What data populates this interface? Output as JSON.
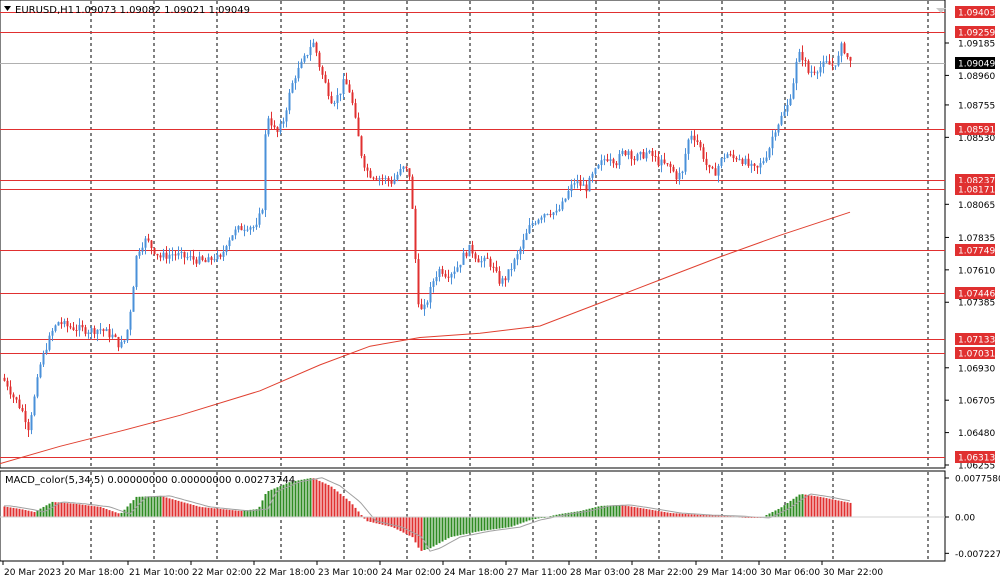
{
  "main_header": {
    "symbol": "EURUSD,H1",
    "ohlc": "1.09073 1.09082 1.09021 1.09049"
  },
  "price_axis": {
    "ticks": [
      "1.09185",
      "1.08960",
      "1.08755",
      "1.08530",
      "1.08065",
      "1.07835",
      "1.07610",
      "1.07385",
      "1.06930",
      "1.06705",
      "1.06480",
      "1.06255"
    ],
    "tick_values": [
      1.09185,
      1.0896,
      1.08755,
      1.0853,
      1.08065,
      1.07835,
      1.0761,
      1.07385,
      1.0693,
      1.06705,
      1.0648,
      1.06255
    ],
    "levels": [
      "1.09403",
      "1.09259",
      "1.08591",
      "1.08237",
      "1.08171",
      "1.07749",
      "1.07446",
      "1.07133",
      "1.07031",
      "1.06313"
    ],
    "level_values": [
      1.09403,
      1.09259,
      1.08591,
      1.08237,
      1.08171,
      1.07749,
      1.07446,
      1.07133,
      1.07031,
      1.06313
    ],
    "current": "1.09049",
    "current_value": 1.09049
  },
  "time_axis": {
    "labels": [
      "20 Mar 2023",
      "20 Mar 18:00",
      "21 Mar 10:00",
      "22 Mar 02:00",
      "22 Mar 18:00",
      "23 Mar 10:00",
      "24 Mar 02:00",
      "24 Mar 18:00",
      "27 Mar 11:00",
      "28 Mar 03:00",
      "28 Mar 22:00",
      "29 Mar 14:00",
      "30 Mar 06:00",
      "30 Mar 22:00"
    ]
  },
  "macd": {
    "header": "MACD_color(5,34,5) 0.00000000 0.00000000 0.00273744",
    "ticks": [
      "0.0077580",
      "0.00",
      "-0.0072270"
    ]
  },
  "colors": {
    "bull": "#4a90d9",
    "bear": "#e03030",
    "level_line": "#e03030",
    "ma_line": "#e04030",
    "macd_up": "#2e8b22",
    "macd_down": "#e03030",
    "signal_line": "#a0a0a0"
  },
  "chart_data": {
    "type": "candlestick",
    "symbol": "EURUSD",
    "timeframe": "H1",
    "price_range": [
      1.0624,
      1.0948
    ],
    "close_path": [
      [
        0,
        1.0686
      ],
      [
        6,
        1.0683
      ],
      [
        12,
        1.0674
      ],
      [
        18,
        1.0668
      ],
      [
        24,
        1.066
      ],
      [
        28,
        1.0652
      ],
      [
        34,
        1.0672
      ],
      [
        40,
        1.0695
      ],
      [
        46,
        1.0708
      ],
      [
        52,
        1.0718
      ],
      [
        58,
        1.0725
      ],
      [
        66,
        1.0722
      ],
      [
        78,
        1.072
      ],
      [
        90,
        1.0719
      ],
      [
        100,
        1.072
      ],
      [
        112,
        1.0715
      ],
      [
        120,
        1.0708
      ],
      [
        124,
        1.0712
      ],
      [
        128,
        1.0722
      ],
      [
        132,
        1.0745
      ],
      [
        136,
        1.077
      ],
      [
        140,
        1.0778
      ],
      [
        146,
        1.0782
      ],
      [
        152,
        1.0776
      ],
      [
        160,
        1.077
      ],
      [
        172,
        1.0772
      ],
      [
        184,
        1.077
      ],
      [
        196,
        1.0768
      ],
      [
        206,
        1.0766
      ],
      [
        214,
        1.077
      ],
      [
        220,
        1.0768
      ],
      [
        226,
        1.078
      ],
      [
        232,
        1.0786
      ],
      [
        240,
        1.079
      ],
      [
        248,
        1.0792
      ],
      [
        256,
        1.079
      ],
      [
        262,
        1.0805
      ],
      [
        266,
        1.087
      ],
      [
        270,
        1.0865
      ],
      [
        276,
        1.0855
      ],
      [
        282,
        1.0862
      ],
      [
        288,
        1.088
      ],
      [
        294,
        1.0895
      ],
      [
        300,
        1.0902
      ],
      [
        306,
        1.091
      ],
      [
        312,
        1.092
      ],
      [
        316,
        1.0912
      ],
      [
        320,
        1.09
      ],
      [
        326,
        1.0888
      ],
      [
        332,
        1.0878
      ],
      [
        338,
        1.0882
      ],
      [
        344,
        1.0892
      ],
      [
        350,
        1.0884
      ],
      [
        356,
        1.086
      ],
      [
        362,
        1.0838
      ],
      [
        368,
        1.0828
      ],
      [
        376,
        1.0826
      ],
      [
        384,
        1.0824
      ],
      [
        392,
        1.0822
      ],
      [
        398,
        1.0828
      ],
      [
        404,
        1.0832
      ],
      [
        410,
        1.0826
      ],
      [
        414,
        1.0778
      ],
      [
        418,
        1.074
      ],
      [
        422,
        1.073
      ],
      [
        428,
        1.0742
      ],
      [
        434,
        1.0756
      ],
      [
        440,
        1.0762
      ],
      [
        446,
        1.0758
      ],
      [
        452,
        1.076
      ],
      [
        458,
        1.0764
      ],
      [
        464,
        1.0772
      ],
      [
        470,
        1.0776
      ],
      [
        476,
        1.077
      ],
      [
        482,
        1.0766
      ],
      [
        488,
        1.0768
      ],
      [
        494,
        1.076
      ],
      [
        500,
        1.0752
      ],
      [
        506,
        1.0756
      ],
      [
        512,
        1.0764
      ],
      [
        518,
        1.0772
      ],
      [
        524,
        1.0782
      ],
      [
        530,
        1.0792
      ],
      [
        536,
        1.0796
      ],
      [
        542,
        1.08
      ],
      [
        548,
        1.0802
      ],
      [
        556,
        1.08
      ],
      [
        562,
        1.0806
      ],
      [
        568,
        1.0815
      ],
      [
        574,
        1.0822
      ],
      [
        580,
        1.082
      ],
      [
        586,
        1.0818
      ],
      [
        592,
        1.0826
      ],
      [
        598,
        1.0832
      ],
      [
        604,
        1.0838
      ],
      [
        610,
        1.084
      ],
      [
        616,
        1.0836
      ],
      [
        622,
        1.0842
      ],
      [
        628,
        1.0844
      ],
      [
        634,
        1.0838
      ],
      [
        640,
        1.084
      ],
      [
        646,
        1.0842
      ],
      [
        652,
        1.084
      ],
      [
        658,
        1.0836
      ],
      [
        664,
        1.0834
      ],
      [
        670,
        1.0832
      ],
      [
        676,
        1.0826
      ],
      [
        682,
        1.0828
      ],
      [
        686,
        1.0846
      ],
      [
        690,
        1.0856
      ],
      [
        696,
        1.0852
      ],
      [
        702,
        1.0842
      ],
      [
        708,
        1.083
      ],
      [
        714,
        1.0828
      ],
      [
        720,
        1.0836
      ],
      [
        726,
        1.0842
      ],
      [
        732,
        1.0838
      ],
      [
        738,
        1.084
      ],
      [
        744,
        1.0836
      ],
      [
        750,
        1.0832
      ],
      [
        756,
        1.083
      ],
      [
        762,
        1.0836
      ],
      [
        768,
        1.0844
      ],
      [
        774,
        1.0858
      ],
      [
        780,
        1.0866
      ],
      [
        786,
        1.0872
      ],
      [
        792,
        1.0888
      ],
      [
        796,
        1.0904
      ],
      [
        800,
        1.0912
      ],
      [
        804,
        1.0906
      ],
      [
        808,
        1.0898
      ],
      [
        814,
        1.09
      ],
      [
        820,
        1.0902
      ],
      [
        826,
        1.0904
      ],
      [
        832,
        1.0903
      ],
      [
        838,
        1.0908
      ],
      [
        842,
        1.0918
      ],
      [
        846,
        1.091
      ],
      [
        850,
        1.0905
      ]
    ],
    "ma_path": [
      [
        0,
        1.06265
      ],
      [
        60,
        1.06385
      ],
      [
        120,
        1.0649
      ],
      [
        180,
        1.066
      ],
      [
        260,
        1.0677
      ],
      [
        320,
        1.0695
      ],
      [
        370,
        1.0708
      ],
      [
        420,
        1.0714
      ],
      [
        480,
        1.0717
      ],
      [
        540,
        1.0722
      ],
      [
        600,
        1.0738
      ],
      [
        660,
        1.0754
      ],
      [
        720,
        1.077
      ],
      [
        780,
        1.0785
      ],
      [
        850,
        1.0801
      ]
    ],
    "macd_path": [
      [
        0,
        0.0022
      ],
      [
        20,
        0.0016
      ],
      [
        34,
        0.001
      ],
      [
        52,
        0.003
      ],
      [
        76,
        0.0026
      ],
      [
        100,
        0.002
      ],
      [
        120,
        0.0006
      ],
      [
        136,
        0.004
      ],
      [
        160,
        0.0042
      ],
      [
        200,
        0.002
      ],
      [
        240,
        0.0012
      ],
      [
        258,
        0.0016
      ],
      [
        266,
        0.005
      ],
      [
        290,
        0.007
      ],
      [
        312,
        0.0078
      ],
      [
        330,
        0.0062
      ],
      [
        350,
        0.003
      ],
      [
        366,
        -0.0008
      ],
      [
        392,
        -0.002
      ],
      [
        412,
        -0.004
      ],
      [
        420,
        -0.0068
      ],
      [
        430,
        -0.0062
      ],
      [
        450,
        -0.004
      ],
      [
        480,
        -0.0028
      ],
      [
        510,
        -0.002
      ],
      [
        530,
        -0.0006
      ],
      [
        560,
        0.0006
      ],
      [
        580,
        0.0012
      ],
      [
        600,
        0.0022
      ],
      [
        620,
        0.0024
      ],
      [
        640,
        0.0018
      ],
      [
        670,
        0.0008
      ],
      [
        700,
        0.0004
      ],
      [
        730,
        0.0002
      ],
      [
        760,
        -0.0002
      ],
      [
        780,
        0.0018
      ],
      [
        800,
        0.0046
      ],
      [
        820,
        0.004
      ],
      [
        850,
        0.0028
      ]
    ]
  }
}
